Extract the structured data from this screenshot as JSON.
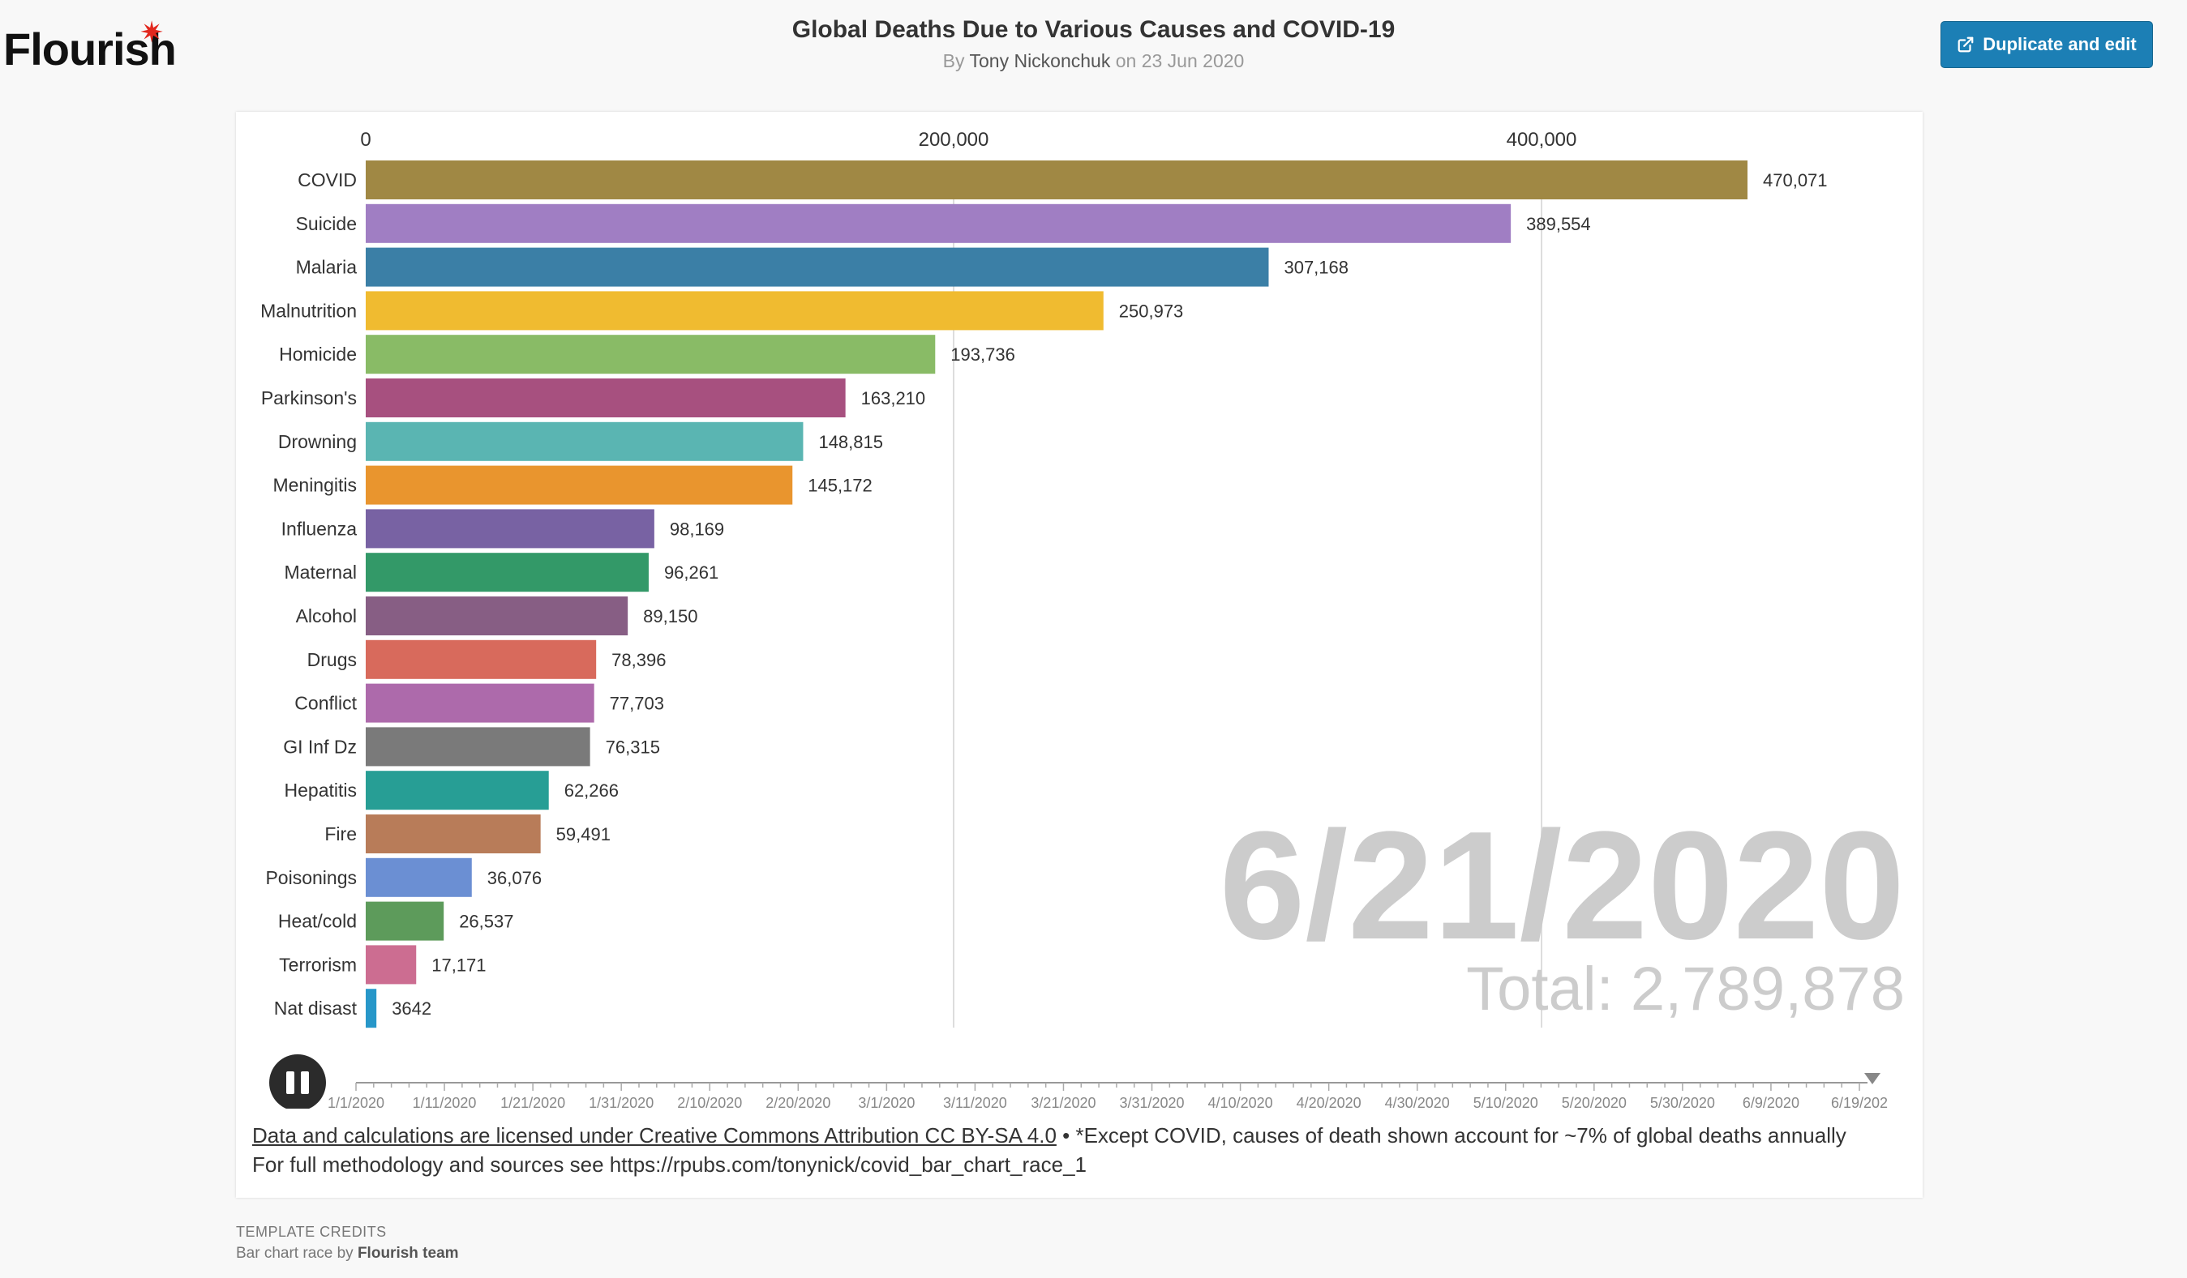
{
  "header": {
    "logo": "Flourish",
    "title": "Global Deaths Due to Various Causes and COVID-19",
    "byline_prefix": "By",
    "author": "Tony Nickonchuk",
    "date_text": "on 23 Jun 2020",
    "duplicate_label": "Duplicate and edit"
  },
  "colors": {
    "accent": "#1c7fb5",
    "logo_star": "#e2271d",
    "gridline": "#dddddd",
    "date_overlay": "#cccccc"
  },
  "chart_data": {
    "type": "bar",
    "orientation": "horizontal",
    "xlim": [
      0,
      500000
    ],
    "x_ticks": [
      0,
      200000,
      400000
    ],
    "x_tick_labels": [
      "0",
      "200,000",
      "400,000"
    ],
    "categories": [
      "COVID",
      "Suicide",
      "Malaria",
      "Malnutrition",
      "Homicide",
      "Parkinson's",
      "Drowning",
      "Meningitis",
      "Influenza",
      "Maternal",
      "Alcohol",
      "Drugs",
      "Conflict",
      "GI Inf Dz",
      "Hepatitis",
      "Fire",
      "Poisonings",
      "Heat/cold",
      "Terrorism",
      "Nat disast"
    ],
    "values": [
      470071,
      389554,
      307168,
      250973,
      193736,
      163210,
      148815,
      145172,
      98169,
      96261,
      89150,
      78396,
      77703,
      76315,
      62266,
      59491,
      36076,
      26537,
      17171,
      3642
    ],
    "value_labels": [
      "470,071",
      "389,554",
      "307,168",
      "250,973",
      "193,736",
      "163,210",
      "148,815",
      "145,172",
      "98,169",
      "96,261",
      "89,150",
      "78,396",
      "77,703",
      "76,315",
      "62,266",
      "59,491",
      "36,076",
      "26,537",
      "17,171",
      "3642"
    ],
    "colors": [
      "#a08844",
      "#a07ec3",
      "#3b7fa6",
      "#f0bb30",
      "#89bb66",
      "#a7507f",
      "#5ab5b2",
      "#e9952e",
      "#7862a3",
      "#339968",
      "#875e84",
      "#d86a5c",
      "#ad6aab",
      "#7a7a7a",
      "#279e95",
      "#b87c59",
      "#6b8fd3",
      "#5d9b5b",
      "#cc6d91",
      "#2797c9"
    ],
    "current_date": "6/21/2020",
    "total_label": "Total: 2,789,878",
    "timeline_labels": [
      "1/1/2020",
      "1/11/2020",
      "1/21/2020",
      "1/31/2020",
      "2/10/2020",
      "2/20/2020",
      "3/1/2020",
      "3/11/2020",
      "3/21/2020",
      "3/31/2020",
      "4/10/2020",
      "4/20/2020",
      "4/30/2020",
      "5/10/2020",
      "5/20/2020",
      "5/30/2020",
      "6/9/2020",
      "6/19/202"
    ],
    "playback_state": "playing"
  },
  "footer": {
    "license_link": "Data and calculations are licensed under Creative Commons Attribution CC BY-SA 4.0",
    "note": " • *Except COVID, causes of death shown account for ~7% of global deaths annually",
    "methodology": "For full methodology and sources see https://rpubs.com/tonynick/covid_bar_chart_race_1"
  },
  "credits": {
    "heading": "TEMPLATE CREDITS",
    "prefix": "Bar chart race by",
    "team": "Flourish team"
  }
}
